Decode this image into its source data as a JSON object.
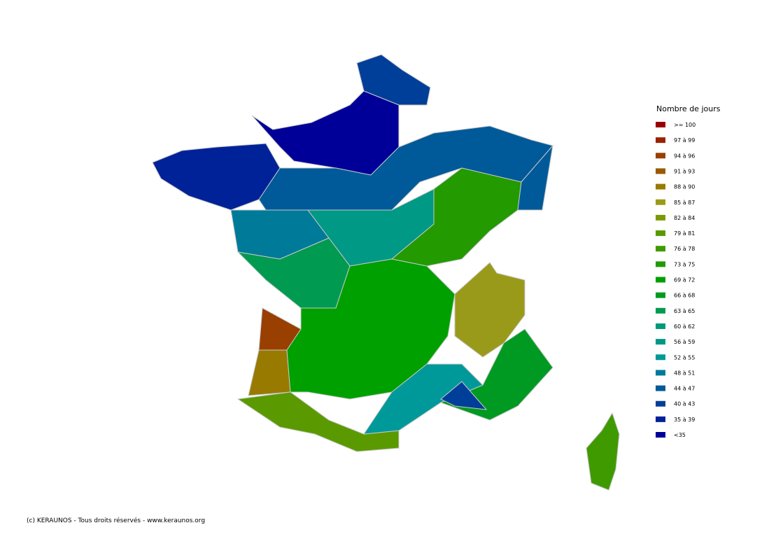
{
  "legend": {
    "title": "Nombre de jours",
    "items": [
      {
        "label": ">= 100",
        "color": "#990000"
      },
      {
        "label": "97 à 99",
        "color": "#992200"
      },
      {
        "label": "94 à 96",
        "color": "#993f00"
      },
      {
        "label": "91 à 93",
        "color": "#995a00"
      },
      {
        "label": "88 à 90",
        "color": "#997a00"
      },
      {
        "label": "85 à 87",
        "color": "#9a9a1a"
      },
      {
        "label": "82 à 84",
        "color": "#7a9a00"
      },
      {
        "label": "79 à 81",
        "color": "#5a9a00"
      },
      {
        "label": "76 à 78",
        "color": "#3f9a00"
      },
      {
        "label": "73 à 75",
        "color": "#229a00"
      },
      {
        "label": "69 à 72",
        "color": "#00a000"
      },
      {
        "label": "66 à 68",
        "color": "#009a22"
      },
      {
        "label": "63 à 65",
        "color": "#009a50"
      },
      {
        "label": "60 à 62",
        "color": "#00997a"
      },
      {
        "label": "56 à 59",
        "color": "#009985"
      },
      {
        "label": "52 à 55",
        "color": "#009999"
      },
      {
        "label": "48 à 51",
        "color": "#007a99"
      },
      {
        "label": "44 à 47",
        "color": "#005a99"
      },
      {
        "label": "40 à 43",
        "color": "#003f99"
      },
      {
        "label": "35 à 39",
        "color": "#002299"
      },
      {
        "label": "<35",
        "color": "#000099"
      }
    ]
  },
  "footer": {
    "copyright": "(c) KERAUNOS - Tous droits réservés - www.keraunos.org"
  }
}
